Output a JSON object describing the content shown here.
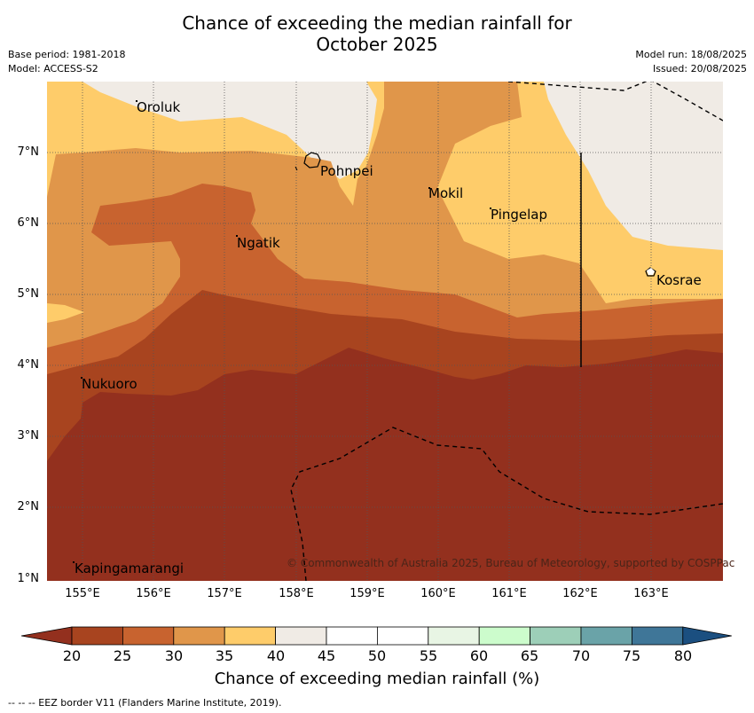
{
  "title_line1": "Chance of exceeding the median rainfall for",
  "title_line2": "October 2025",
  "base_period": "Base period: 1981-2018",
  "model": "Model: ACCESS-S2",
  "model_run": "Model run: 18/08/2025",
  "issued": "Issued: 20/08/2025",
  "lat_labels": [
    "7°N",
    "6°N",
    "5°N",
    "4°N",
    "3°N",
    "2°N",
    "1°N"
  ],
  "lon_labels": [
    "155°E",
    "156°E",
    "157°E",
    "158°E",
    "159°E",
    "160°E",
    "161°E",
    "162°E",
    "163°E"
  ],
  "places": {
    "oroluk": "Oroluk",
    "pohnpei": "Pohnpei",
    "mokil": "Mokil",
    "pingelap": "Pingelap",
    "ngatik": "Ngatik",
    "kosrae": "Kosrae",
    "nukuoro": "Nukuoro",
    "kapingamarangi": "Kapingamarangi"
  },
  "credit": "© Commonwealth of Australia 2025, Bureau of Meteorology, supported by COSPPac",
  "colorbar": {
    "ticks": [
      "20",
      "25",
      "30",
      "35",
      "40",
      "45",
      "50",
      "55",
      "60",
      "65",
      "70",
      "75",
      "80"
    ],
    "label": "Chance of exceeding median rainfall (%)",
    "colors": [
      "#a8441f",
      "#c8632f",
      "#e0964a",
      "#fecc6a",
      "#f0ebe5",
      "#ffffff",
      "#ffffff",
      "#e8f5e4",
      "#ccfccc",
      "#9dcfb8",
      "#6aa3a8",
      "#3f7698"
    ],
    "under_color": "#93301e",
    "over_color": "#1b4f80"
  },
  "eez_note": "-- -- -- EEZ border V11 (Flanders Marine Institute, 2019).",
  "map_colors": {
    "lt20": "#93301e",
    "p20_25": "#a8441f",
    "p25_30": "#c8632f",
    "p30_35": "#e0964a",
    "p35_40": "#fecc6a",
    "p40_45": "#f0ebe5",
    "land_outline": "#000000",
    "grid": "#555555"
  }
}
